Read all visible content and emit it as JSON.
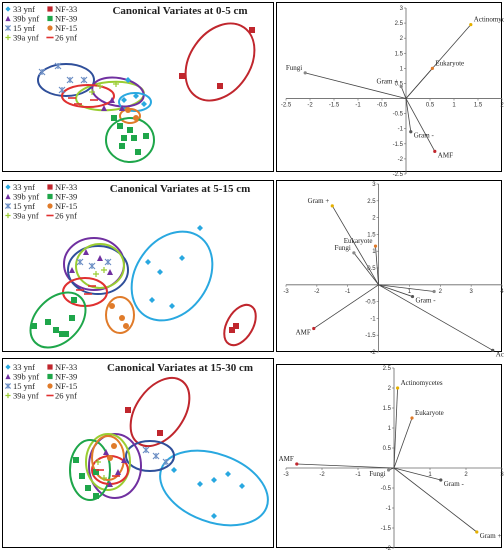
{
  "chart_data": [
    {
      "type": "scatter",
      "title": "Canonical Variates at 0-5 cm",
      "legend": [
        {
          "label": "33 ynf",
          "marker": "diamond",
          "color": "#29a8e0"
        },
        {
          "label": "NF-33",
          "marker": "square",
          "color": "#c0262d"
        },
        {
          "label": "39b ynf",
          "marker": "triangle",
          "color": "#7030a0"
        },
        {
          "label": "NF-39",
          "marker": "square",
          "color": "#1ea64a"
        },
        {
          "label": "15 ynf",
          "marker": "x",
          "color": "#6c8ec4"
        },
        {
          "label": "NF-15",
          "marker": "circle",
          "color": "#e07b2a"
        },
        {
          "label": "39a ynf",
          "marker": "plus",
          "color": "#9acd32"
        },
        {
          "label": "26 ynf",
          "marker": "dash",
          "color": "#e03030"
        }
      ],
      "ellipse_colors": [
        "#c0262d",
        "#2f4f9a",
        "#9acd32",
        "#7030a0",
        "#e07b2a",
        "#29a8e0",
        "#e03030",
        "#1ea64a"
      ]
    },
    {
      "type": "line",
      "xlim": [
        -2.5,
        2
      ],
      "ylim": [
        -2.5,
        3
      ],
      "xticks": [
        "-2.5",
        "-2",
        "-1.5",
        "-1",
        "-0.5",
        "0",
        "0.5",
        "1",
        "1.5",
        "2"
      ],
      "yticks": [
        "3",
        "2.5",
        "2",
        "1.5",
        "1",
        "0.5",
        "0",
        "-0.5",
        "-1",
        "-1.5",
        "-2",
        "-2.5"
      ],
      "vectors": [
        {
          "label": "Actinomycetes",
          "x": 1.35,
          "y": 2.45,
          "color": "#e5b000"
        },
        {
          "label": "Fungi",
          "x": -2.1,
          "y": 0.85,
          "color": "#888888"
        },
        {
          "label": "Eukaryote",
          "x": 0.55,
          "y": 1.0,
          "color": "#e07b2a"
        },
        {
          "label": "Gram +",
          "x": -0.1,
          "y": 0.4,
          "color": "#888888"
        },
        {
          "label": "Gram -",
          "x": 0.1,
          "y": -1.1,
          "color": "#555555"
        },
        {
          "label": "AMF",
          "x": 0.6,
          "y": -1.75,
          "color": "#c0262d"
        }
      ]
    },
    {
      "type": "scatter",
      "title": "Canonical Variates at 5-15 cm",
      "legend": [
        {
          "label": "33 ynf",
          "marker": "diamond",
          "color": "#29a8e0"
        },
        {
          "label": "NF-33",
          "marker": "square",
          "color": "#c0262d"
        },
        {
          "label": "39b ynf",
          "marker": "triangle",
          "color": "#7030a0"
        },
        {
          "label": "NF-39",
          "marker": "square",
          "color": "#1ea64a"
        },
        {
          "label": "15 ynf",
          "marker": "x",
          "color": "#6c8ec4"
        },
        {
          "label": "NF-15",
          "marker": "circle",
          "color": "#e07b2a"
        },
        {
          "label": "39a ynf",
          "marker": "plus",
          "color": "#9acd32"
        },
        {
          "label": "26 ynf",
          "marker": "dash",
          "color": "#e03030"
        }
      ]
    },
    {
      "type": "line",
      "xlim": [
        -3,
        4
      ],
      "ylim": [
        -2,
        3
      ],
      "xticks": [
        "-3",
        "-2",
        "-1",
        "0",
        "1",
        "2",
        "3",
        "4"
      ],
      "yticks": [
        "3",
        "2.5",
        "2",
        "1.5",
        "1",
        "0.5",
        "0",
        "-0.5",
        "-1",
        "-1.5",
        "-2"
      ],
      "vectors": [
        {
          "label": "Gram +",
          "x": -1.5,
          "y": 2.35,
          "color": "#e5b000"
        },
        {
          "label": "Fungi",
          "x": -0.8,
          "y": 0.95,
          "color": "#888888"
        },
        {
          "label": "Eukaryote",
          "x": -0.1,
          "y": 1.15,
          "color": "#e07b2a"
        },
        {
          "label": "AMF",
          "x": -2.1,
          "y": -1.3,
          "color": "#c0262d"
        },
        {
          "label": "Gram -",
          "x": 1.1,
          "y": -0.35,
          "color": "#555555"
        },
        {
          "label": "Actinomycetes",
          "x": 3.7,
          "y": -1.95,
          "color": "#555555"
        },
        {
          "label": "",
          "x": 1.8,
          "y": -0.2,
          "color": "#888888"
        }
      ]
    },
    {
      "type": "scatter",
      "title": "Canonical Variates at 15-30 cm",
      "legend": [
        {
          "label": "33 ynf",
          "marker": "diamond",
          "color": "#29a8e0"
        },
        {
          "label": "NF-33",
          "marker": "square",
          "color": "#c0262d"
        },
        {
          "label": "39b ynf",
          "marker": "triangle",
          "color": "#7030a0"
        },
        {
          "label": "NF-39",
          "marker": "square",
          "color": "#1ea64a"
        },
        {
          "label": "15 ynf",
          "marker": "x",
          "color": "#6c8ec4"
        },
        {
          "label": "NF-15",
          "marker": "circle",
          "color": "#e07b2a"
        },
        {
          "label": "39a ynf",
          "marker": "plus",
          "color": "#9acd32"
        },
        {
          "label": "26 ynf",
          "marker": "dash",
          "color": "#e03030"
        }
      ]
    },
    {
      "type": "line",
      "xlim": [
        -3,
        3
      ],
      "ylim": [
        -2,
        2.5
      ],
      "xticks": [
        "-3",
        "-2",
        "-1",
        "0",
        "1",
        "2",
        "3"
      ],
      "yticks": [
        "2.5",
        "2",
        "1.5",
        "1",
        "0.5",
        "0",
        "-0.5",
        "-1",
        "-1.5",
        "-2"
      ],
      "vectors": [
        {
          "label": "Actinomycetes",
          "x": 0.1,
          "y": 2.0,
          "color": "#e5b000"
        },
        {
          "label": "Eukaryote",
          "x": 0.5,
          "y": 1.25,
          "color": "#e07b2a"
        },
        {
          "label": "AMF",
          "x": -2.7,
          "y": 0.1,
          "color": "#c0262d"
        },
        {
          "label": "Fungi",
          "x": -0.15,
          "y": -0.05,
          "color": "#888888"
        },
        {
          "label": "Gram -",
          "x": 1.3,
          "y": -0.3,
          "color": "#555555"
        },
        {
          "label": "Gram +",
          "x": 2.3,
          "y": -1.6,
          "color": "#e5b000"
        }
      ]
    }
  ]
}
